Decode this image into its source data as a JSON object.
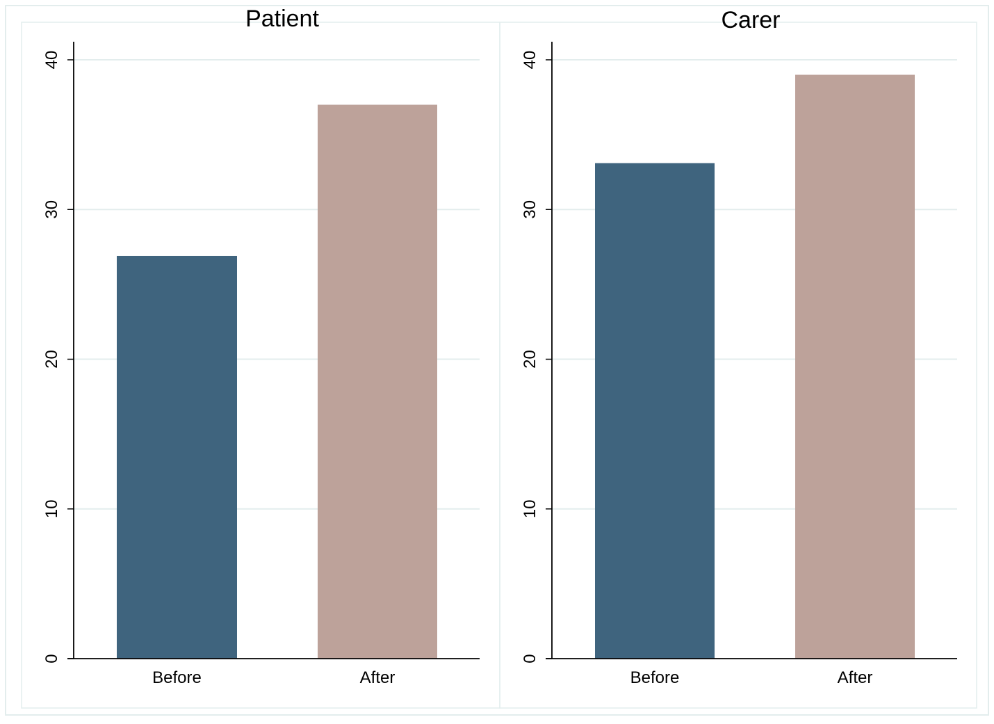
{
  "chart_data": [
    {
      "type": "bar",
      "title": "Patient",
      "categories": [
        "Before",
        "After"
      ],
      "values": [
        26.9,
        37
      ],
      "xlabel": "",
      "ylabel": "",
      "ylim": [
        0,
        40
      ],
      "yticks": [
        "0",
        "10",
        "20",
        "30",
        "40"
      ],
      "grid": true,
      "colors": [
        "#3f647e",
        "#bda29a"
      ]
    },
    {
      "type": "bar",
      "title": "Carer",
      "categories": [
        "Before",
        "After"
      ],
      "values": [
        33.1,
        39
      ],
      "xlabel": "",
      "ylabel": "",
      "ylim": [
        0,
        40
      ],
      "yticks": [
        "0",
        "10",
        "20",
        "30",
        "40"
      ],
      "grid": true,
      "colors": [
        "#3f647e",
        "#bda29a"
      ]
    }
  ],
  "style": {
    "grid_color": "#e3eded",
    "axis_color": "#000000",
    "border_color": "#e3eded"
  }
}
